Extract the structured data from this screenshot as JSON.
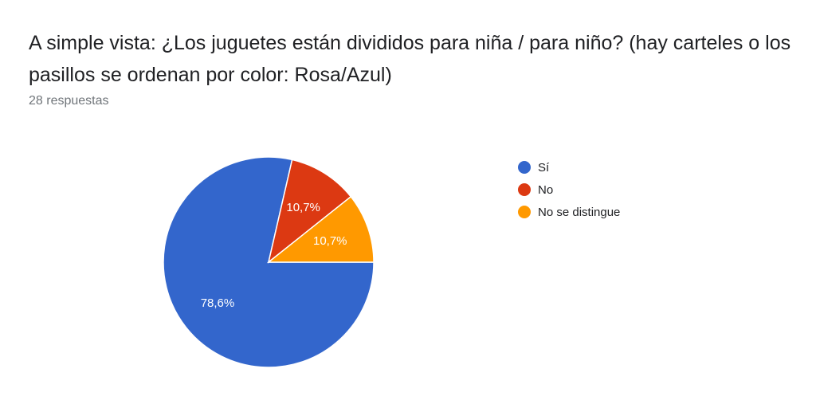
{
  "header": {
    "title": "A simple vista: ¿Los juguetes están divididos para niña / para niño? (hay carteles o los pasillos se ordenan por color: Rosa/Azul)",
    "responses": "28 respuestas"
  },
  "chart_data": {
    "type": "pie",
    "categories": [
      "Sí",
      "No",
      "No se distingue"
    ],
    "values": [
      78.6,
      10.7,
      10.7
    ],
    "labels": [
      "78,6%",
      "10,7%",
      "10,7%"
    ],
    "colors": [
      "#3366cc",
      "#dc3912",
      "#ff9900"
    ],
    "legend": "right"
  }
}
